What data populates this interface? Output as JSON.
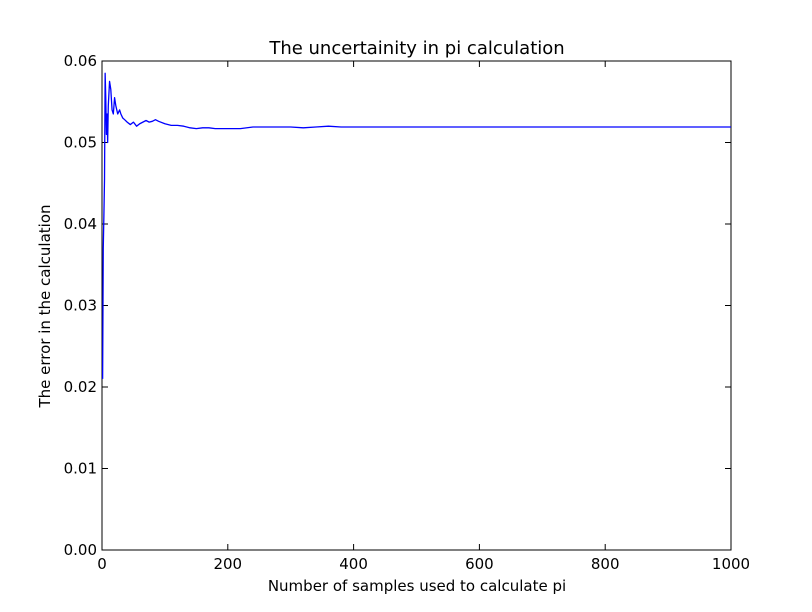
{
  "chart_data": {
    "type": "line",
    "title": "The uncertainity in pi calculation",
    "xlabel": "Number of samples used to calculate pi",
    "ylabel": "The error in the calculation",
    "xlim": [
      0,
      1000
    ],
    "ylim": [
      0.0,
      0.06
    ],
    "x_ticks": [
      0,
      200,
      400,
      600,
      800,
      1000
    ],
    "x_tick_labels": [
      "0",
      "200",
      "400",
      "600",
      "800",
      "1000"
    ],
    "y_ticks": [
      0.0,
      0.01,
      0.02,
      0.03,
      0.04,
      0.05,
      0.06
    ],
    "y_tick_labels": [
      "0.00",
      "0.01",
      "0.02",
      "0.03",
      "0.04",
      "0.05",
      "0.06"
    ],
    "grid": false,
    "series": [
      {
        "color": "#0000ff",
        "x": [
          1,
          2,
          3,
          4,
          5,
          6,
          7,
          8,
          9,
          10,
          12,
          14,
          16,
          18,
          20,
          22,
          25,
          28,
          30,
          33,
          36,
          40,
          45,
          50,
          55,
          60,
          65,
          70,
          75,
          80,
          85,
          90,
          100,
          110,
          120,
          130,
          140,
          150,
          160,
          170,
          180,
          200,
          220,
          240,
          260,
          280,
          300,
          320,
          340,
          360,
          380,
          400,
          450,
          500,
          550,
          600,
          650,
          700,
          750,
          800,
          850,
          900,
          950,
          1000
        ],
        "y": [
          0.021,
          0.037,
          0.041,
          0.0455,
          0.0585,
          0.0555,
          0.051,
          0.0535,
          0.05,
          0.0545,
          0.0575,
          0.0565,
          0.054,
          0.0535,
          0.0555,
          0.0545,
          0.0535,
          0.054,
          0.0535,
          0.053,
          0.0528,
          0.0525,
          0.0522,
          0.0525,
          0.052,
          0.0523,
          0.0525,
          0.0527,
          0.0525,
          0.0526,
          0.0528,
          0.0526,
          0.0523,
          0.0521,
          0.0521,
          0.052,
          0.0518,
          0.0517,
          0.0518,
          0.0518,
          0.0517,
          0.0517,
          0.0517,
          0.0519,
          0.0519,
          0.0519,
          0.0519,
          0.0518,
          0.0519,
          0.052,
          0.0519,
          0.0519,
          0.0519,
          0.0519,
          0.0519,
          0.0519,
          0.0519,
          0.0519,
          0.0519,
          0.0519,
          0.0519,
          0.0519,
          0.0519,
          0.0519
        ]
      }
    ]
  }
}
